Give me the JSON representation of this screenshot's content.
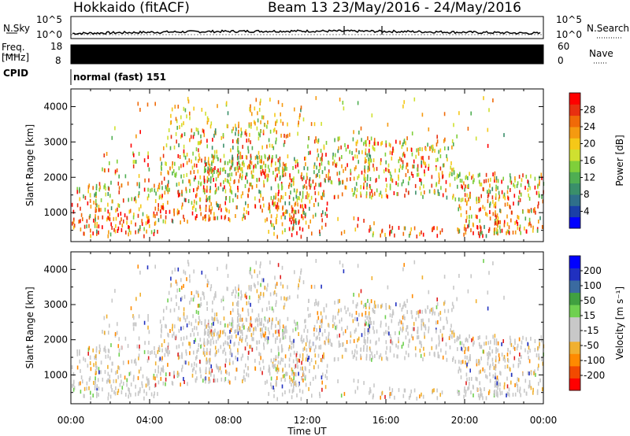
{
  "header": {
    "station": "Hokkaido (fitACF)",
    "beam": "Beam 13",
    "date_range": "23/May/2016 - 24/May/2016"
  },
  "strips": {
    "nsky_label": "N.Sky",
    "nsky_ticks": [
      "10^5",
      "10^0"
    ],
    "nsearch_label": "N.Search",
    "freq_label": "Freq.",
    "freq_unit": "[MHz]",
    "freq_ticks": [
      "18",
      "8"
    ],
    "nave_ticks": [
      "60",
      "0"
    ],
    "nave_label": "Nave",
    "cpid_label": "CPID",
    "cpid_value": "normal (fast) 151"
  },
  "chart_data": [
    {
      "type": "heatmap",
      "name": "power",
      "ylabel": "Slant Range [km]",
      "yticks": [
        "1000",
        "2000",
        "3000",
        "4000"
      ],
      "ylim": [
        180,
        4500
      ],
      "colorbar_label": "Power [dB]",
      "colorbar_ticks": [
        "28",
        "24",
        "20",
        "16",
        "12",
        "8",
        "4"
      ],
      "colorbar_range": [
        0,
        30
      ],
      "colors": [
        "#0000ff",
        "#1a3fa8",
        "#2f6f8a",
        "#3a8f6a",
        "#4fae52",
        "#7fcf3a",
        "#cfe030",
        "#f5c818",
        "#f59a10",
        "#f06a08",
        "#e83010",
        "#ff0000"
      ]
    },
    {
      "type": "heatmap",
      "name": "velocity",
      "ylabel": "Slant Range [km]",
      "yticks": [
        "1000",
        "2000",
        "3000",
        "4000"
      ],
      "ylim": [
        180,
        4500
      ],
      "colorbar_label": "Velocity [m s⁻¹]",
      "colorbar_ticks": [
        "200",
        "100",
        "50",
        "15",
        "-15",
        "-50",
        "-100",
        "-200"
      ],
      "colorbar_range": [
        -250,
        250
      ],
      "colors": [
        "#ff0000",
        "#f24a00",
        "#ff8a00",
        "#f0b030",
        "#c8c8c8",
        "#c8c8c8",
        "#6fd050",
        "#40a040",
        "#3a6aa0",
        "#2030c0",
        "#0000ff"
      ]
    }
  ],
  "xaxis": {
    "ticks": [
      "00:00",
      "04:00",
      "08:00",
      "12:00",
      "16:00",
      "20:00",
      "00:00"
    ],
    "label": "Time UT"
  }
}
